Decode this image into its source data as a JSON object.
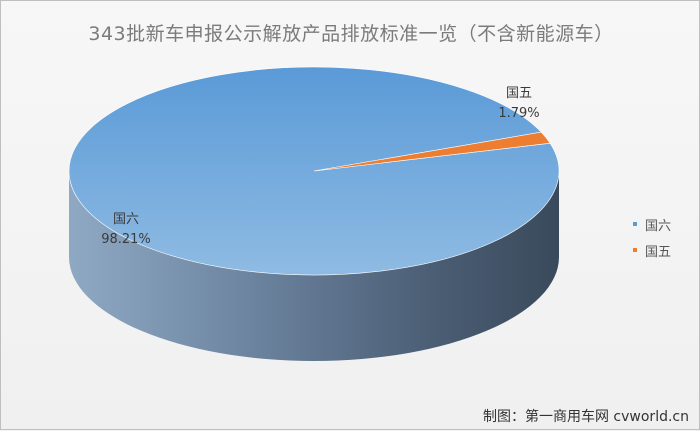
{
  "chart_data": {
    "type": "pie",
    "title": "343批新车申报公示解放产品排放标准一览（不含新能源车）",
    "slices": [
      {
        "label": "国六",
        "percent": "98.21%",
        "value": 98.21,
        "color": "#5b9bd5"
      },
      {
        "label": "国五",
        "percent": "1.79%",
        "value": 1.79,
        "color": "#ed7d31"
      }
    ],
    "legend": {
      "position": "right",
      "items": [
        "国六",
        "国五"
      ]
    },
    "style": "3d"
  },
  "footer": {
    "credit": "制图：第一商用车网 cvworld.cn"
  }
}
